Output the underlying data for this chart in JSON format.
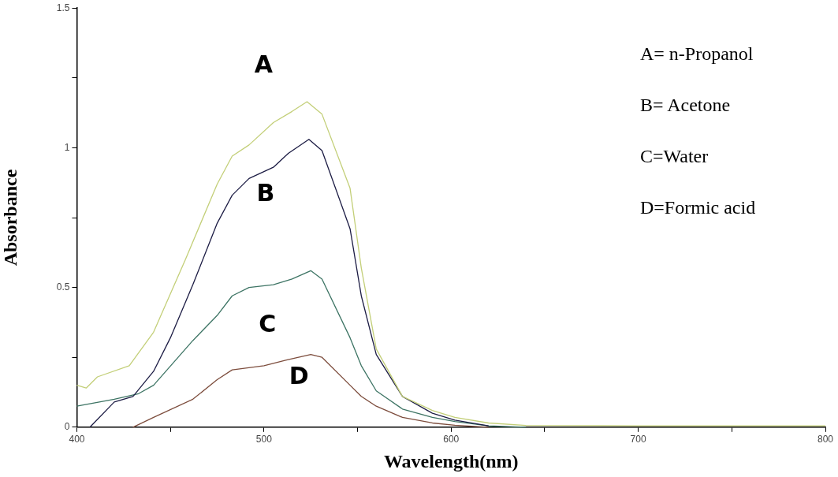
{
  "chart_data": {
    "type": "line",
    "xlabel": "Wavelength(nm)",
    "ylabel": "Absorbance",
    "xlim": [
      400,
      800
    ],
    "ylim": [
      0,
      1.5
    ],
    "xticks": [
      400,
      {
        "value": 450,
        "label": null
      },
      500,
      {
        "value": 550,
        "label": null
      },
      600,
      {
        "value": 650,
        "label": null
      },
      700,
      {
        "value": 750,
        "label": null
      },
      800
    ],
    "yticks": [
      0,
      {
        "value": 0.25,
        "label": null
      },
      0.5,
      {
        "value": 0.75,
        "label": null
      },
      1,
      {
        "value": 1.25,
        "label": null
      },
      1.5
    ],
    "grid": false,
    "legend": false,
    "marker": "none",
    "line_style": "solid",
    "series": [
      {
        "name": "A",
        "color": "#c3cf78",
        "x": [
          400,
          405,
          411,
          428,
          441,
          458,
          475,
          483,
          492,
          505,
          515,
          523,
          531,
          546,
          552,
          560,
          574,
          590,
          602,
          620,
          640,
          700,
          800
        ],
        "values": [
          0.15,
          0.14,
          0.18,
          0.22,
          0.34,
          0.6,
          0.87,
          0.97,
          1.01,
          1.09,
          1.13,
          1.165,
          1.12,
          0.855,
          0.57,
          0.28,
          0.11,
          0.06,
          0.035,
          0.015,
          0.006,
          0.005,
          0.005
        ]
      },
      {
        "name": "B",
        "color": "#1c1c44",
        "x": [
          407,
          420,
          430,
          441,
          450,
          462,
          475,
          483,
          492,
          505,
          513,
          524,
          531,
          546,
          552,
          560,
          574,
          590,
          602,
          620
        ],
        "values": [
          0,
          0.09,
          0.11,
          0.2,
          0.32,
          0.51,
          0.73,
          0.83,
          0.89,
          0.93,
          0.98,
          1.03,
          0.99,
          0.71,
          0.47,
          0.26,
          0.11,
          0.05,
          0.025,
          0.005
        ]
      },
      {
        "name": "C",
        "color": "#3d7464",
        "x": [
          400,
          420,
          433,
          441,
          462,
          475,
          483,
          492,
          505,
          515,
          525,
          531,
          546,
          552,
          560,
          574,
          590,
          602,
          620,
          640
        ],
        "values": [
          0.075,
          0.1,
          0.12,
          0.15,
          0.31,
          0.4,
          0.47,
          0.5,
          0.51,
          0.53,
          0.56,
          0.53,
          0.32,
          0.22,
          0.13,
          0.065,
          0.035,
          0.02,
          0.005,
          0
        ]
      },
      {
        "name": "D",
        "color": "#7d4d3d",
        "x": [
          430,
          441,
          462,
          475,
          483,
          500,
          512,
          525,
          531,
          546,
          552,
          560,
          574,
          590,
          602,
          620
        ],
        "values": [
          0,
          0.035,
          0.1,
          0.17,
          0.205,
          0.22,
          0.24,
          0.26,
          0.25,
          0.15,
          0.11,
          0.075,
          0.035,
          0.015,
          0.007,
          0
        ]
      }
    ],
    "annotations": [
      "A= n-Propanol",
      "B= Acetone",
      "C=Water",
      "D=Formic acid"
    ]
  }
}
